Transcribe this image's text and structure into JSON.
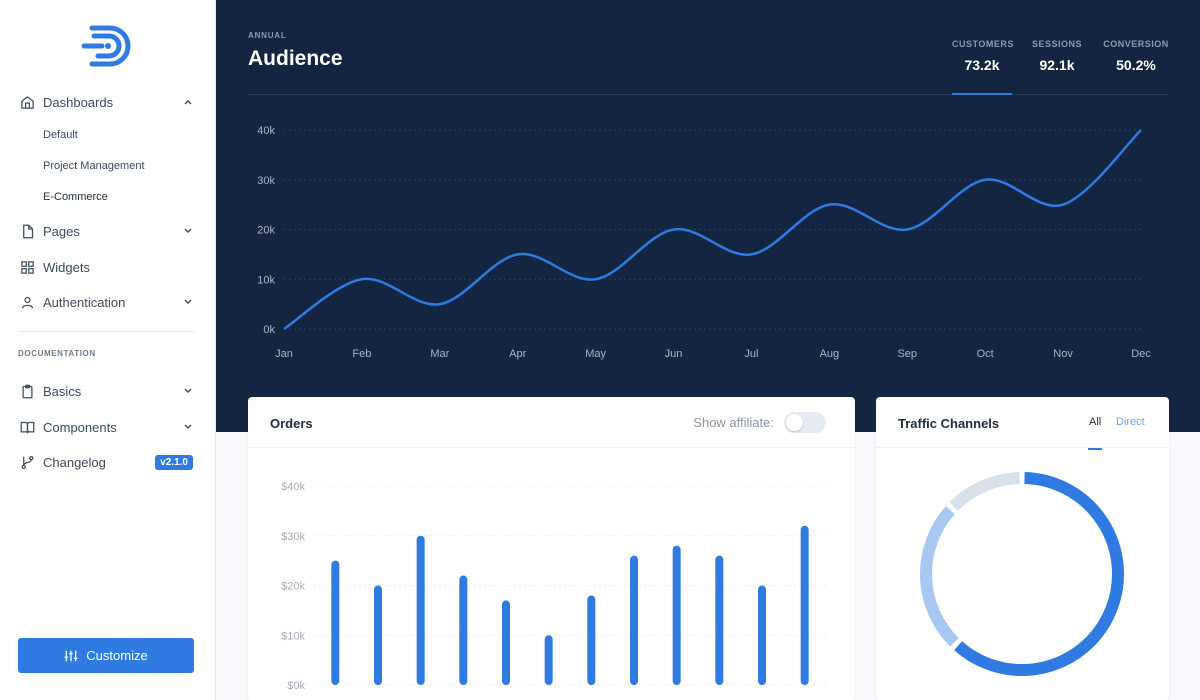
{
  "sidebar": {
    "nav": [
      {
        "label": "Dashboards",
        "icon": "home-icon",
        "expanded": true
      },
      {
        "label": "Pages",
        "icon": "file-icon"
      },
      {
        "label": "Widgets",
        "icon": "grid-icon"
      },
      {
        "label": "Authentication",
        "icon": "user-icon"
      }
    ],
    "dashboards_sub": [
      "Default",
      "Project Management",
      "E-Commerce"
    ],
    "section_label": "DOCUMENTATION",
    "docs": [
      {
        "label": "Basics",
        "icon": "clipboard-icon"
      },
      {
        "label": "Components",
        "icon": "book-icon"
      },
      {
        "label": "Changelog",
        "icon": "git-branch-icon"
      }
    ],
    "version": "v2.1.0",
    "customize_label": "Customize"
  },
  "hero": {
    "eyebrow": "ANNUAL",
    "title": "Audience",
    "stats": [
      {
        "label": "CUSTOMERS",
        "value": "73.2k"
      },
      {
        "label": "SESSIONS",
        "value": "92.1k"
      },
      {
        "label": "CONVERSION",
        "value": "50.2%"
      }
    ]
  },
  "orders": {
    "title": "Orders",
    "affiliate_label": "Show affiliate:"
  },
  "traffic": {
    "title": "Traffic Channels",
    "tabs": [
      "All",
      "Direct"
    ]
  },
  "colors": {
    "accent": "#2f7be2",
    "hero_bg": "#142541",
    "donut_light": "#a8c8f2",
    "donut_lighter": "#d7e0eb"
  },
  "chart_data": [
    {
      "type": "line",
      "categories": [
        "Jan",
        "Feb",
        "Mar",
        "Apr",
        "May",
        "Jun",
        "Jul",
        "Aug",
        "Sep",
        "Oct",
        "Nov",
        "Dec"
      ],
      "values": [
        0,
        10000,
        5000,
        15000,
        10000,
        20000,
        15000,
        25000,
        20000,
        30000,
        25000,
        40000
      ],
      "ytick_labels": [
        "0k",
        "10k",
        "20k",
        "30k",
        "40k"
      ],
      "ylim": [
        0,
        40000
      ]
    },
    {
      "type": "bar",
      "values": [
        25000,
        20000,
        30000,
        22000,
        17000,
        10000,
        18000,
        26000,
        28000,
        26000,
        20000,
        32000
      ],
      "ytick_labels": [
        "$0k",
        "$10k",
        "$20k",
        "$30k",
        "$40k"
      ],
      "ylim": [
        0,
        40000
      ]
    },
    {
      "type": "pie",
      "values": [
        62,
        25,
        13
      ],
      "colors": [
        "#2f7be2",
        "#a8c8f2",
        "#d7e0eb"
      ]
    }
  ]
}
